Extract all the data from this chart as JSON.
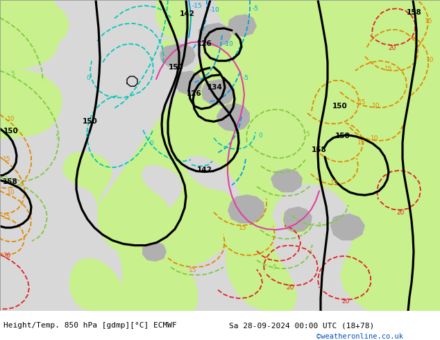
{
  "title_left": "Height/Temp. 850 hPa [gdmp][°C] ECMWF",
  "title_right": "Sa 28-09-2024 00:00 UTC (18+78)",
  "credit": "©weatheronline.co.uk",
  "bg_color": "#d8d8d8",
  "land_green": "#c8f08c",
  "land_gray": "#b0b0b0",
  "contour_black": "#000000",
  "contour_blue": "#00a0e0",
  "contour_cyan": "#00c8b8",
  "contour_green": "#80c840",
  "contour_orange": "#e08800",
  "contour_red": "#e02020",
  "contour_pink": "#e040a0",
  "credit_color": "#0050c0",
  "fig_width": 6.34,
  "fig_height": 4.9,
  "dpi": 100
}
